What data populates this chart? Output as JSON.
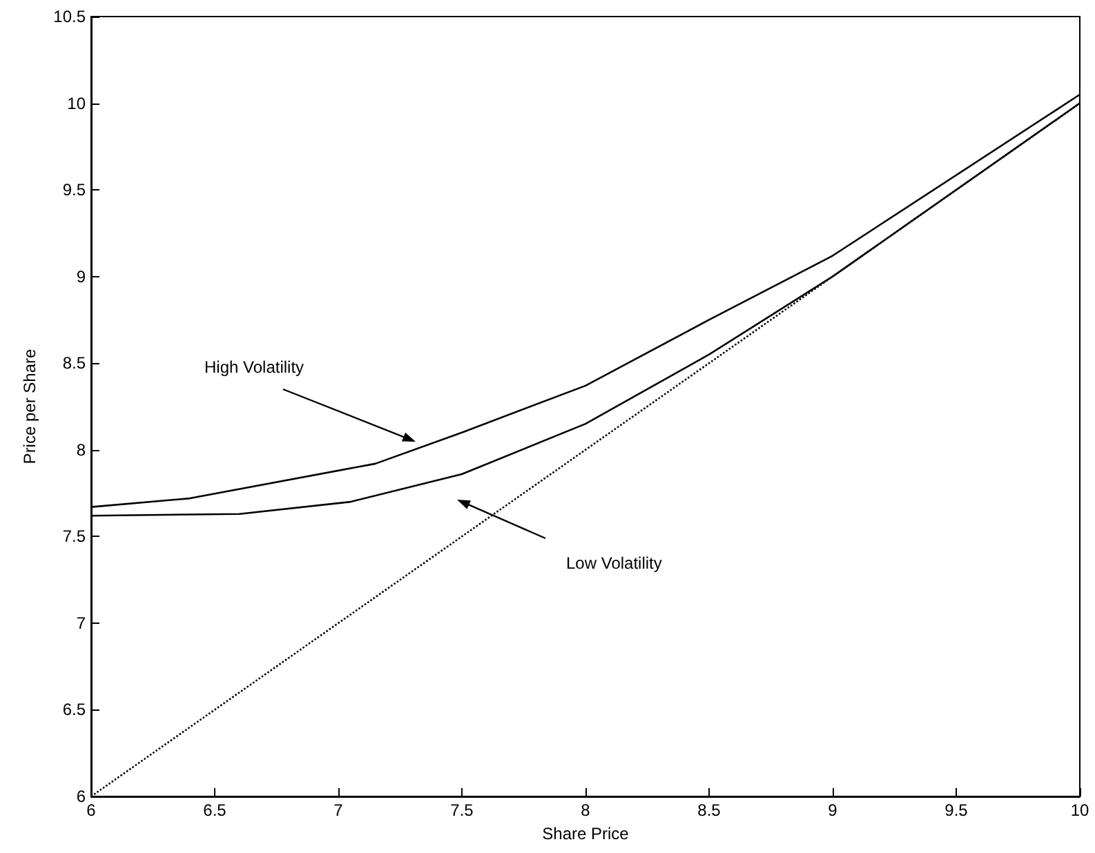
{
  "chart_data": {
    "type": "line",
    "xlabel": "Share Price",
    "ylabel": "Price per Share",
    "xlim": [
      6,
      10
    ],
    "xticks": [
      6,
      6.5,
      7,
      7.5,
      8,
      8.5,
      9,
      9.5,
      10
    ],
    "ylim": [
      6,
      10.5
    ],
    "yticks": [
      6,
      6.5,
      7,
      7.5,
      8,
      8.5,
      9,
      9.5,
      10,
      10.5
    ],
    "grid": false,
    "marker": "none",
    "series": [
      {
        "color": "#000000",
        "line_style": "solid",
        "x": [
          6,
          6.4,
          7.15,
          7.5,
          8,
          8.5,
          9,
          10
        ],
        "values": [
          7.67,
          7.72,
          7.92,
          8.1,
          8.37,
          8.75,
          9.12,
          10.05
        ]
      },
      {
        "color": "#000000",
        "line_style": "solid",
        "x": [
          6,
          6.6,
          7.05,
          7.5,
          8,
          8.5,
          9,
          10
        ],
        "values": [
          7.62,
          7.63,
          7.7,
          7.86,
          8.15,
          8.55,
          9.0,
          10.0
        ]
      },
      {
        "color": "#000000",
        "line_style": "dotted",
        "x": [
          6,
          10
        ],
        "values": [
          6,
          10
        ]
      }
    ],
    "annotations": [
      "High Volatility",
      "Low Volatility"
    ]
  }
}
